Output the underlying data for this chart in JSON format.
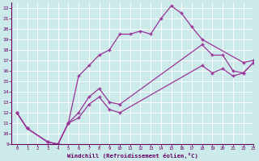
{
  "xlabel": "Windchill (Refroidissement éolien,°C)",
  "bg_color": "#cceaea",
  "line_color": "#993399",
  "grid_color": "#b0d8d8",
  "xlim": [
    -0.5,
    23
  ],
  "ylim": [
    9,
    22.5
  ],
  "xticks": [
    0,
    1,
    2,
    3,
    4,
    5,
    6,
    7,
    8,
    9,
    10,
    11,
    12,
    13,
    14,
    15,
    16,
    17,
    18,
    19,
    20,
    21,
    22,
    23
  ],
  "yticks": [
    9,
    10,
    11,
    12,
    13,
    14,
    15,
    16,
    17,
    18,
    19,
    20,
    21,
    22
  ],
  "line1_x": [
    0,
    1,
    3,
    4,
    5,
    6,
    7,
    8,
    9,
    10,
    11,
    12,
    13,
    14,
    15,
    16,
    17,
    18,
    22,
    23
  ],
  "line1_y": [
    12,
    10.5,
    9.2,
    9.0,
    11.0,
    15.5,
    16.5,
    17.5,
    18.0,
    19.5,
    19.5,
    19.8,
    19.5,
    21.0,
    22.2,
    21.5,
    20.2,
    19.0,
    16.8,
    17.0
  ],
  "line2_x": [
    0,
    1,
    3,
    4,
    5,
    6,
    7,
    8,
    9,
    10,
    18,
    19,
    20,
    21,
    22,
    23
  ],
  "line2_y": [
    12,
    10.5,
    9.2,
    9.0,
    11.0,
    12.0,
    13.5,
    14.3,
    13.0,
    12.8,
    18.5,
    17.5,
    17.5,
    16.0,
    15.8,
    16.8
  ],
  "line3_x": [
    0,
    1,
    3,
    4,
    5,
    6,
    7,
    8,
    9,
    10,
    18,
    19,
    20,
    21,
    22,
    23
  ],
  "line3_y": [
    12,
    10.5,
    9.2,
    9.0,
    11.0,
    11.5,
    12.8,
    13.5,
    12.3,
    12.0,
    16.5,
    15.8,
    16.2,
    15.5,
    15.8,
    16.8
  ]
}
